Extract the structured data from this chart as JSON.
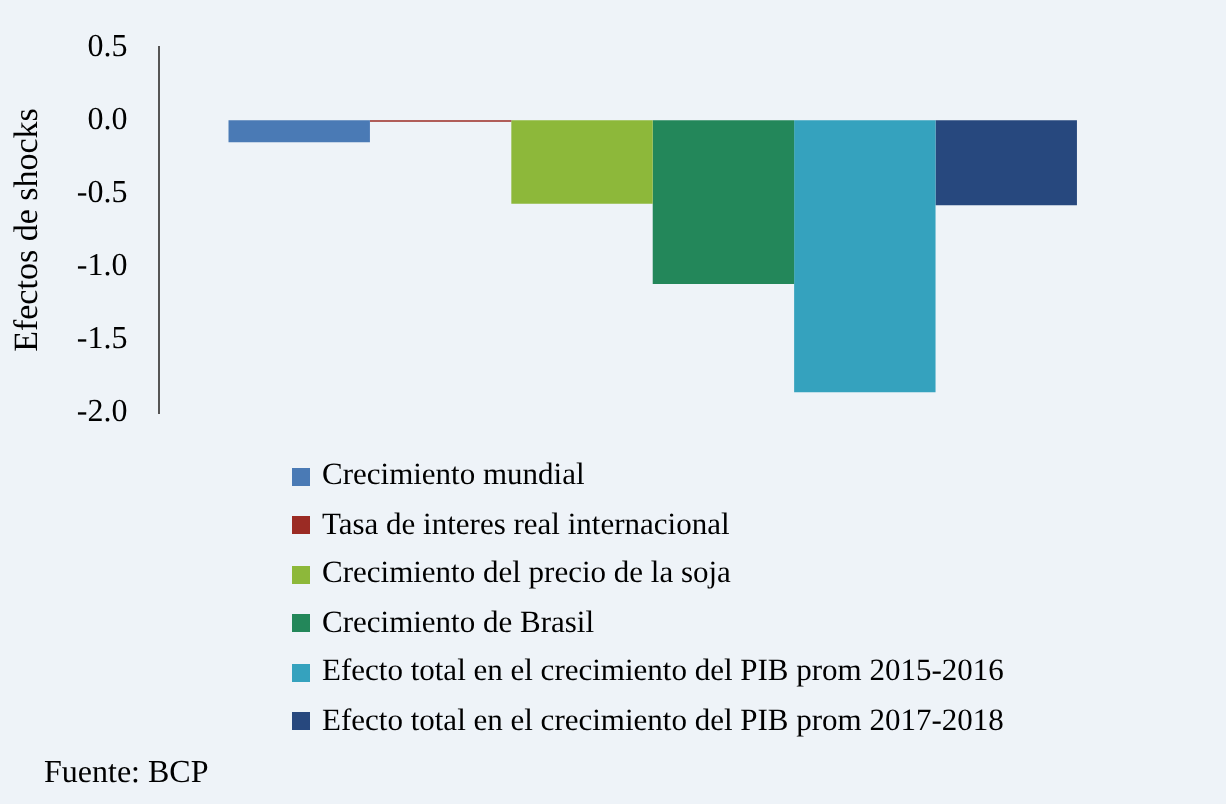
{
  "chart_data": {
    "type": "bar",
    "ylabel": "Efectos de shocks",
    "categories": [
      null
    ],
    "series": [
      {
        "name": "Crecimiento mundial",
        "color": "#4a7ab5",
        "values": [
          -0.15
        ]
      },
      {
        "name": "Tasa de interes real internacional",
        "color": "#9b2b24",
        "values": [
          -0.01
        ]
      },
      {
        "name": "Crecimiento del precio de la soja",
        "color": "#8db83a",
        "values": [
          -0.57
        ]
      },
      {
        "name": "Crecimiento de Brasil",
        "color": "#23875a",
        "values": [
          -1.12
        ]
      },
      {
        "name": "Efecto total en el crecimiento del PIB prom 2015-2016",
        "color": "#35a2be",
        "values": [
          -1.86
        ]
      },
      {
        "name": "Efecto total en el crecimiento del PIB prom 2017-2018",
        "color": "#27487e",
        "values": [
          -0.58
        ]
      }
    ],
    "ylim": [
      -2.0,
      0.5
    ],
    "yticks": [
      {
        "value": -2,
        "label": "-2.0"
      },
      {
        "value": -1.5,
        "label": "-1.5"
      },
      {
        "value": -1,
        "label": "-1.0"
      },
      {
        "value": -0.5,
        "label": "-0.5"
      },
      {
        "value": 0,
        "label": "0.0"
      },
      {
        "value": 0.5,
        "label": "0.5"
      }
    ],
    "grid": false,
    "legend": "bottom",
    "annotations": [
      "Fuente: BCP"
    ]
  }
}
